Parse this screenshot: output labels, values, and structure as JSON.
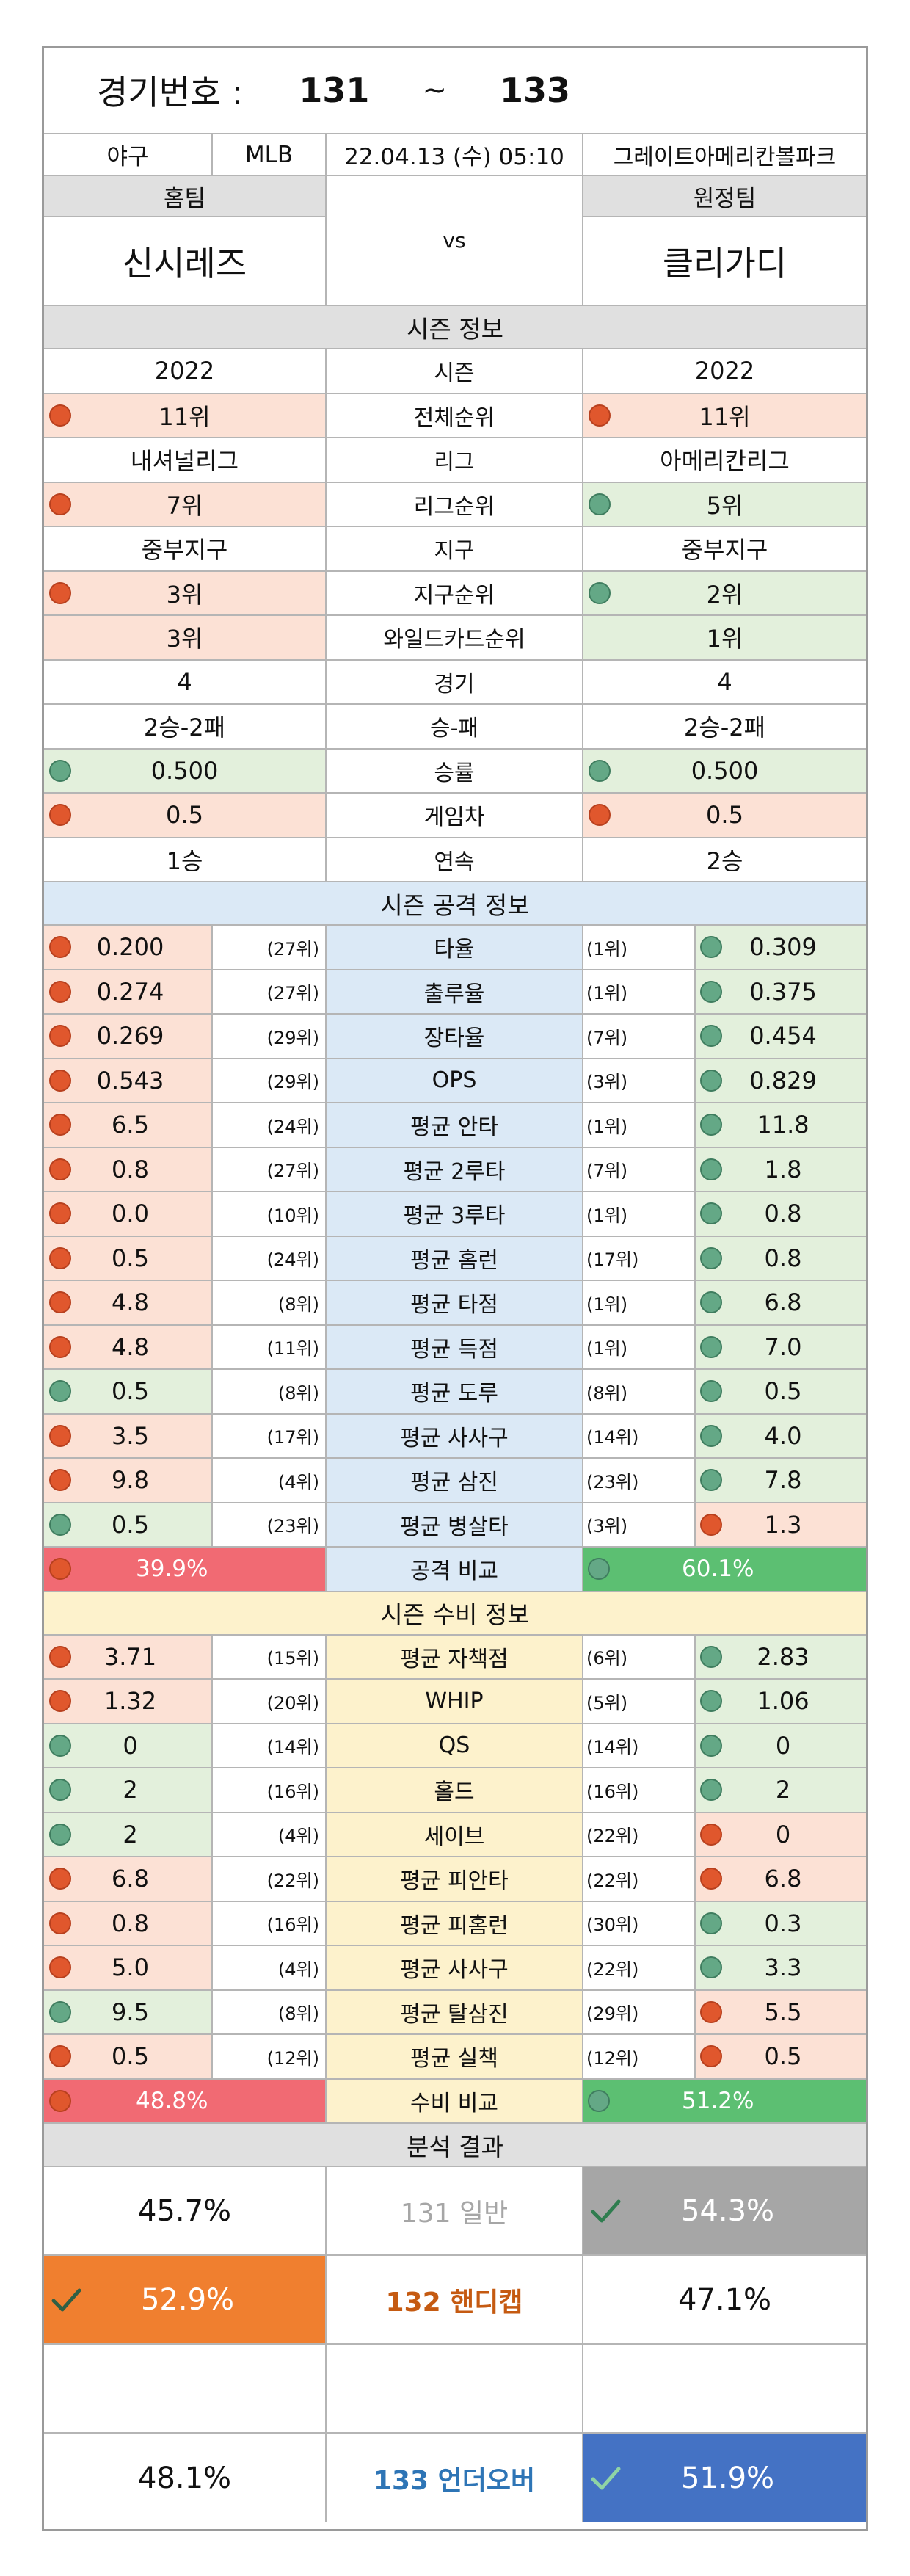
{
  "header": {
    "match_label": "경기번호 :",
    "match_from": "131",
    "match_sep": "~",
    "match_to": "133",
    "sport": "야구",
    "league": "MLB",
    "datetime": "22.04.13 (수) 05:10",
    "venue": "그레이트아메리칸볼파크"
  },
  "teams": {
    "home_label": "홈팀",
    "away_label": "원정팀",
    "vs": "vs",
    "home_name": "신시레즈",
    "away_name": "클리가디"
  },
  "colors": {
    "rank_bad_bg": "#fce1d5",
    "rank_good_bg": "#e3f0dc",
    "section_gray": "#e0e0e0",
    "attack_mid": "#dbe9f6",
    "defense_mid": "#fdf2cc",
    "home_compare": "#f16a73",
    "away_compare": "#5cbf72",
    "recommend_gray": "#a6a6a6",
    "recommend_orange": "#f07f2f",
    "recommend_blue": "#4472c4",
    "handicap_label": "#c55a11",
    "overunder_label": "#2e75b6",
    "general_label": "#a6a6a6",
    "dot_red": "#e0572d",
    "dot_green": "#64a886"
  },
  "season": {
    "title": "시즌 정보",
    "rows": [
      {
        "label": "시즌",
        "home": "2022",
        "away": "2022",
        "hd": "",
        "ad": "",
        "hb": "w",
        "ab": "w"
      },
      {
        "label": "전체순위",
        "home": "11위",
        "away": "11위",
        "hd": "r",
        "ad": "r",
        "hb": "r",
        "ab": "r"
      },
      {
        "label": "리그",
        "home": "내셔널리그",
        "away": "아메리칸리그",
        "hd": "",
        "ad": "",
        "hb": "w",
        "ab": "w"
      },
      {
        "label": "리그순위",
        "home": "7위",
        "away": "5위",
        "hd": "r",
        "ad": "g",
        "hb": "r",
        "ab": "g"
      },
      {
        "label": "지구",
        "home": "중부지구",
        "away": "중부지구",
        "hd": "",
        "ad": "",
        "hb": "w",
        "ab": "w"
      },
      {
        "label": "지구순위",
        "home": "3위",
        "away": "2위",
        "hd": "r",
        "ad": "g",
        "hb": "r",
        "ab": "g"
      },
      {
        "label": "와일드카드순위",
        "home": "3위",
        "away": "1위",
        "hd": "",
        "ad": "",
        "hb": "r",
        "ab": "g"
      },
      {
        "label": "경기",
        "home": "4",
        "away": "4",
        "hd": "",
        "ad": "",
        "hb": "w",
        "ab": "w"
      },
      {
        "label": "승-패",
        "home": "2승-2패",
        "away": "2승-2패",
        "hd": "",
        "ad": "",
        "hb": "w",
        "ab": "w"
      },
      {
        "label": "승률",
        "home": "0.500",
        "away": "0.500",
        "hd": "g",
        "ad": "g",
        "hb": "g",
        "ab": "g"
      },
      {
        "label": "게임차",
        "home": "0.5",
        "away": "0.5",
        "hd": "r",
        "ad": "r",
        "hb": "r",
        "ab": "r"
      },
      {
        "label": "연속",
        "home": "1승",
        "away": "2승",
        "hd": "",
        "ad": "",
        "hb": "w",
        "ab": "w"
      }
    ]
  },
  "attack": {
    "title": "시즌 공격 정보",
    "rows": [
      {
        "label": "타율",
        "home": "0.200",
        "home_rank": "(27위)",
        "away_rank": "(1위)",
        "away": "0.309",
        "hd": "r",
        "ad": "g"
      },
      {
        "label": "출루율",
        "home": "0.274",
        "home_rank": "(27위)",
        "away_rank": "(1위)",
        "away": "0.375",
        "hd": "r",
        "ad": "g"
      },
      {
        "label": "장타율",
        "home": "0.269",
        "home_rank": "(29위)",
        "away_rank": "(7위)",
        "away": "0.454",
        "hd": "r",
        "ad": "g"
      },
      {
        "label": "OPS",
        "home": "0.543",
        "home_rank": "(29위)",
        "away_rank": "(3위)",
        "away": "0.829",
        "hd": "r",
        "ad": "g"
      },
      {
        "label": "평균 안타",
        "home": "6.5",
        "home_rank": "(24위)",
        "away_rank": "(1위)",
        "away": "11.8",
        "hd": "r",
        "ad": "g"
      },
      {
        "label": "평균 2루타",
        "home": "0.8",
        "home_rank": "(27위)",
        "away_rank": "(7위)",
        "away": "1.8",
        "hd": "r",
        "ad": "g"
      },
      {
        "label": "평균 3루타",
        "home": "0.0",
        "home_rank": "(10위)",
        "away_rank": "(1위)",
        "away": "0.8",
        "hd": "r",
        "ad": "g"
      },
      {
        "label": "평균 홈런",
        "home": "0.5",
        "home_rank": "(24위)",
        "away_rank": "(17위)",
        "away": "0.8",
        "hd": "r",
        "ad": "g"
      },
      {
        "label": "평균 타점",
        "home": "4.8",
        "home_rank": "(8위)",
        "away_rank": "(1위)",
        "away": "6.8",
        "hd": "r",
        "ad": "g"
      },
      {
        "label": "평균 득점",
        "home": "4.8",
        "home_rank": "(11위)",
        "away_rank": "(1위)",
        "away": "7.0",
        "hd": "r",
        "ad": "g"
      },
      {
        "label": "평균 도루",
        "home": "0.5",
        "home_rank": "(8위)",
        "away_rank": "(8위)",
        "away": "0.5",
        "hd": "g",
        "ad": "g"
      },
      {
        "label": "평균 사사구",
        "home": "3.5",
        "home_rank": "(17위)",
        "away_rank": "(14위)",
        "away": "4.0",
        "hd": "r",
        "ad": "g"
      },
      {
        "label": "평균 삼진",
        "home": "9.8",
        "home_rank": "(4위)",
        "away_rank": "(23위)",
        "away": "7.8",
        "hd": "r",
        "ad": "g"
      },
      {
        "label": "평균 병살타",
        "home": "0.5",
        "home_rank": "(23위)",
        "away_rank": "(3위)",
        "away": "1.3",
        "hd": "g",
        "ad": "r"
      }
    ],
    "compare": {
      "label": "공격 비교",
      "home": "39.9%",
      "away": "60.1%",
      "home_pct": 39.9,
      "away_pct": 60.1
    }
  },
  "defense": {
    "title": "시즌 수비 정보",
    "rows": [
      {
        "label": "평균 자책점",
        "home": "3.71",
        "home_rank": "(15위)",
        "away_rank": "(6위)",
        "away": "2.83",
        "hd": "r",
        "ad": "g"
      },
      {
        "label": "WHIP",
        "home": "1.32",
        "home_rank": "(20위)",
        "away_rank": "(5위)",
        "away": "1.06",
        "hd": "r",
        "ad": "g"
      },
      {
        "label": "QS",
        "home": "0",
        "home_rank": "(14위)",
        "away_rank": "(14위)",
        "away": "0",
        "hd": "g",
        "ad": "g"
      },
      {
        "label": "홀드",
        "home": "2",
        "home_rank": "(16위)",
        "away_rank": "(16위)",
        "away": "2",
        "hd": "g",
        "ad": "g"
      },
      {
        "label": "세이브",
        "home": "2",
        "home_rank": "(4위)",
        "away_rank": "(22위)",
        "away": "0",
        "hd": "g",
        "ad": "r"
      },
      {
        "label": "평균 피안타",
        "home": "6.8",
        "home_rank": "(22위)",
        "away_rank": "(22위)",
        "away": "6.8",
        "hd": "r",
        "ad": "r"
      },
      {
        "label": "평균 피홈런",
        "home": "0.8",
        "home_rank": "(16위)",
        "away_rank": "(30위)",
        "away": "0.3",
        "hd": "r",
        "ad": "g"
      },
      {
        "label": "평균 사사구",
        "home": "5.0",
        "home_rank": "(4위)",
        "away_rank": "(22위)",
        "away": "3.3",
        "hd": "r",
        "ad": "g"
      },
      {
        "label": "평균 탈삼진",
        "home": "9.5",
        "home_rank": "(8위)",
        "away_rank": "(29위)",
        "away": "5.5",
        "hd": "g",
        "ad": "r"
      },
      {
        "label": "평균 실책",
        "home": "0.5",
        "home_rank": "(12위)",
        "away_rank": "(12위)",
        "away": "0.5",
        "hd": "r",
        "ad": "r"
      }
    ],
    "compare": {
      "label": "수비 비교",
      "home": "48.8%",
      "away": "51.2%",
      "home_pct": 48.8,
      "away_pct": 51.2
    }
  },
  "analysis": {
    "title": "분석 결과",
    "rows": [
      {
        "num": "131",
        "type": "일반",
        "home": "45.7%",
        "away": "54.3%",
        "pick": "away",
        "pick_color": "recommend_gray",
        "label_color": "general_label"
      },
      {
        "num": "132",
        "type": "핸디캡",
        "home": "52.9%",
        "away": "47.1%",
        "pick": "home",
        "pick_color": "recommend_orange",
        "label_color": "handicap_label"
      },
      {
        "num": "133",
        "type": "언더오버",
        "home": "48.1%",
        "away": "51.9%",
        "pick": "away",
        "pick_color": "recommend_blue",
        "label_color": "overunder_label"
      }
    ]
  }
}
